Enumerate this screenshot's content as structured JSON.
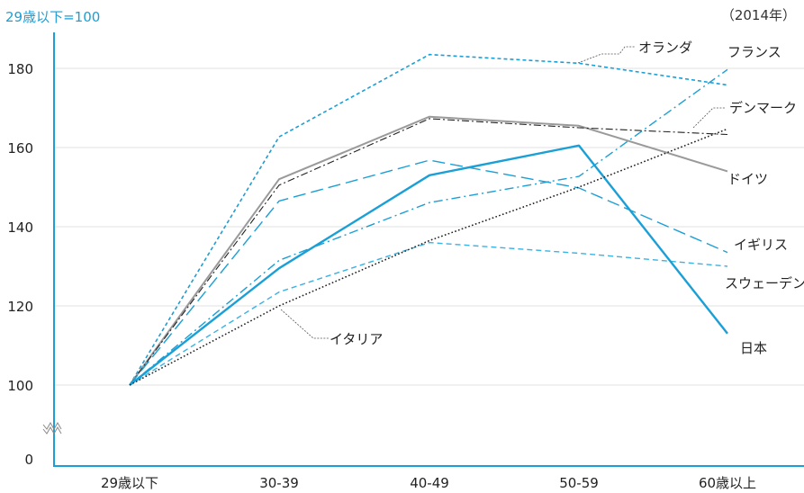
{
  "chart_data": {
    "type": "line",
    "unit_note": "29歳以下=100",
    "year_note": "（2014年）",
    "categories": [
      "29歳以下",
      "30-39",
      "40-49",
      "50-59",
      "60歳以上"
    ],
    "y_ticks": [
      "0",
      "100",
      "120",
      "140",
      "160",
      "180"
    ],
    "y_axis_break": true,
    "ylim": [
      100,
      190
    ],
    "grid": true,
    "series": [
      {
        "name": "オランダ",
        "values": [
          100,
          162.7,
          183.5,
          181.3,
          175.8
        ],
        "color": "#1a9fd6",
        "dash": "4 3",
        "width": 1.6
      },
      {
        "name": "フランス",
        "values": [
          100,
          131.5,
          146.1,
          152.7,
          179.7
        ],
        "color": "#1a9fd6",
        "dash": "10 4 2 4",
        "width": 1.4
      },
      {
        "name": "デンマーク",
        "values": [
          100,
          120.0,
          136.5,
          150.0,
          164.7
        ],
        "color": "#222222",
        "dash": "1.5 2.5",
        "width": 1.4
      },
      {
        "name": "ドイツ",
        "values": [
          100,
          152.0,
          167.8,
          165.5,
          154.0
        ],
        "color": "#9a9a9a",
        "dash": "",
        "width": 2.0
      },
      {
        "name": "",
        "values": [
          100,
          150.5,
          167.3,
          165.0,
          163.3
        ],
        "color": "#222222",
        "dash": "8 3 2 3",
        "width": 1.1
      },
      {
        "name": "イギリス",
        "values": [
          100,
          146.5,
          156.8,
          149.8,
          133.5
        ],
        "color": "#1a9fd6",
        "dash": "14 6",
        "width": 1.4
      },
      {
        "name": "スウェーデン",
        "values": [
          100,
          123.5,
          136.0,
          133.3,
          130.0
        ],
        "color": "#3ab2e3",
        "dash": "6 4",
        "width": 1.4
      },
      {
        "name": "日本",
        "values": [
          100,
          129.5,
          153.0,
          160.5,
          113.0
        ],
        "color": "#1a9fd6",
        "dash": "",
        "width": 2.4
      },
      {
        "name": "イタリア",
        "values": [
          100,
          120.0,
          136.5,
          150.0,
          164.7
        ],
        "color": "#222222",
        "dash": "1.5 2.5",
        "width": 1.4
      }
    ],
    "labels": {
      "netherlands": "オランダ",
      "france": "フランス",
      "denmark": "デンマーク",
      "germany": "ドイツ",
      "uk": "イギリス",
      "sweden": "スウェーデン",
      "japan": "日本",
      "italy": "イタリア"
    }
  }
}
